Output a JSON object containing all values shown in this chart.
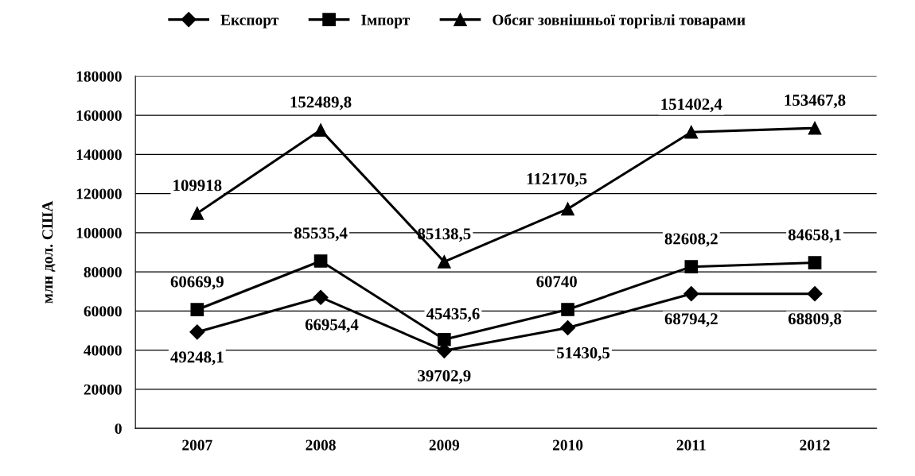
{
  "chart_data": {
    "type": "line",
    "ylabel": "млн дол. США",
    "categories": [
      "2007",
      "2008",
      "2009",
      "2010",
      "2011",
      "2012"
    ],
    "series": [
      {
        "name": "Експорт",
        "color": "#000000",
        "marker": "diamond",
        "values": [
          49248.1,
          66954.4,
          39702.9,
          51430.5,
          68794.2,
          68809.8
        ],
        "value_labels": [
          "49248,1",
          "66954,4",
          "39702,9",
          "51430,5",
          "68794,2",
          "68809,8"
        ]
      },
      {
        "name": "Імпорт",
        "color": "#000000",
        "marker": "square",
        "values": [
          60669.9,
          85535.4,
          45435.6,
          60740,
          82608.2,
          84658.1
        ],
        "value_labels": [
          "60669,9",
          "85535,4",
          "45435,6",
          "60740",
          "82608,2",
          "84658,1"
        ]
      },
      {
        "name": "Обсяг зовнішньої торгівлі товарами",
        "color": "#000000",
        "marker": "triangle",
        "values": [
          109918,
          152489.8,
          85138.5,
          112170.5,
          151402.4,
          153467.8
        ],
        "value_labels": [
          "109918",
          "152489,8",
          "85138,5",
          "112170,5",
          "151402,4",
          "153467,8"
        ]
      }
    ],
    "ylim": [
      0,
      180000
    ],
    "yticks": [
      0,
      20000,
      40000,
      60000,
      80000,
      100000,
      120000,
      140000,
      160000,
      180000
    ],
    "grid": "y",
    "legend": "top",
    "line_style": "solid"
  }
}
